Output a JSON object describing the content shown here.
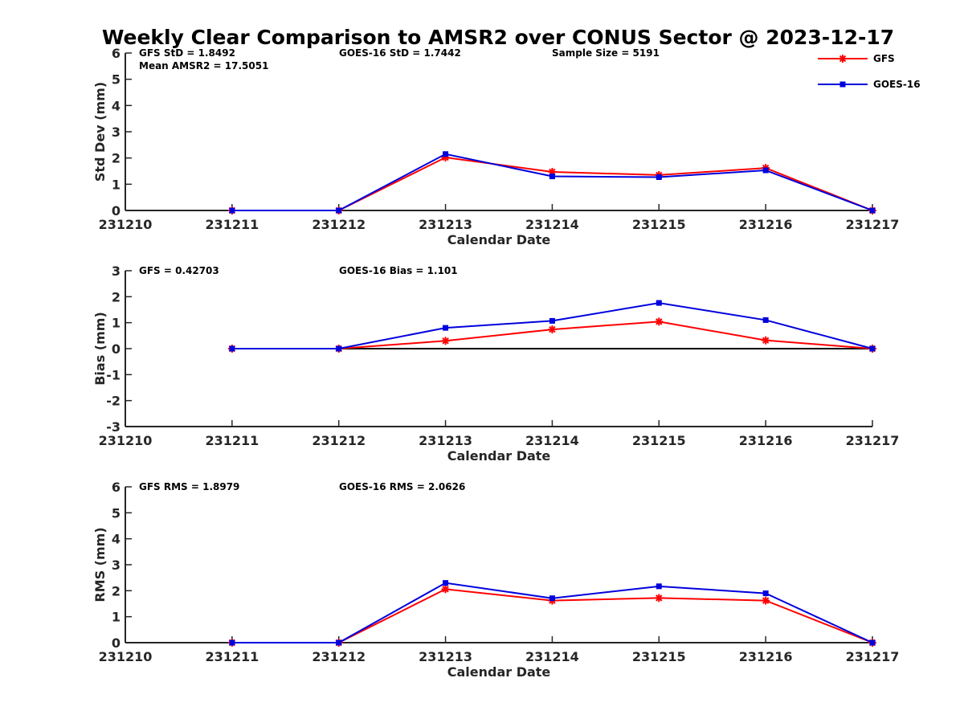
{
  "title": "Weekly Clear Comparison to AMSR2 over CONUS Sector @ 2023-12-17",
  "legend": {
    "placement": "top-right",
    "items": [
      "GFS",
      "GOES-16"
    ]
  },
  "colors": {
    "gfs": "#ff0000",
    "goes16": "#0000dd",
    "axis": "#262626",
    "zero_line": "#000000"
  },
  "chart_data": [
    {
      "type": "line",
      "ylabel": "Std Dev (mm)",
      "xlabel": "Calendar Date",
      "x": [
        "231210",
        "231211",
        "231212",
        "231213",
        "231214",
        "231215",
        "231216",
        "231217"
      ],
      "ylim": [
        0,
        6
      ],
      "yticks": [
        "0",
        "1",
        "2",
        "3",
        "4",
        "5",
        "6"
      ],
      "annotations": {
        "gfs": "GFS StD = 1.8492",
        "goes": "GOES-16 StD = 1.7442",
        "sample": "Sample Size = 5191",
        "mean": "Mean AMSR2 = 17.5051"
      },
      "series": [
        {
          "name": "GFS",
          "marker": "asterisk",
          "values": [
            null,
            0,
            0,
            2.02,
            1.47,
            1.35,
            1.62,
            0
          ]
        },
        {
          "name": "GOES-16",
          "marker": "square",
          "values": [
            null,
            0,
            0,
            2.15,
            1.3,
            1.27,
            1.53,
            0
          ]
        }
      ]
    },
    {
      "type": "line",
      "ylabel": "Bias (mm)",
      "xlabel": "Calendar Date",
      "x": [
        "231210",
        "231211",
        "231212",
        "231213",
        "231214",
        "231215",
        "231216",
        "231217"
      ],
      "ylim": [
        -3,
        3
      ],
      "yticks": [
        "-3",
        "-2",
        "-1",
        "0",
        "1",
        "2",
        "3"
      ],
      "zero_line": true,
      "annotations": {
        "gfs": "GFS = 0.42703",
        "goes": "GOES-16 Bias  = 1.101"
      },
      "series": [
        {
          "name": "GFS",
          "marker": "asterisk",
          "values": [
            null,
            0,
            0,
            0.3,
            0.74,
            1.04,
            0.32,
            0
          ]
        },
        {
          "name": "GOES-16",
          "marker": "square",
          "values": [
            null,
            0,
            0,
            0.8,
            1.07,
            1.76,
            1.1,
            0
          ]
        }
      ]
    },
    {
      "type": "line",
      "ylabel": "RMS (mm)",
      "xlabel": "Calendar Date",
      "x": [
        "231210",
        "231211",
        "231212",
        "231213",
        "231214",
        "231215",
        "231216",
        "231217"
      ],
      "ylim": [
        0,
        6
      ],
      "yticks": [
        "0",
        "1",
        "2",
        "3",
        "4",
        "5",
        "6"
      ],
      "annotations": {
        "gfs": "GFS RMS = 1.8979",
        "goes": "GOES-16 RMS = 2.0626"
      },
      "series": [
        {
          "name": "GFS",
          "marker": "asterisk",
          "values": [
            null,
            0,
            0,
            2.06,
            1.62,
            1.72,
            1.62,
            0
          ]
        },
        {
          "name": "GOES-16",
          "marker": "square",
          "values": [
            null,
            0,
            0,
            2.3,
            1.71,
            2.17,
            1.9,
            0
          ]
        }
      ]
    }
  ]
}
